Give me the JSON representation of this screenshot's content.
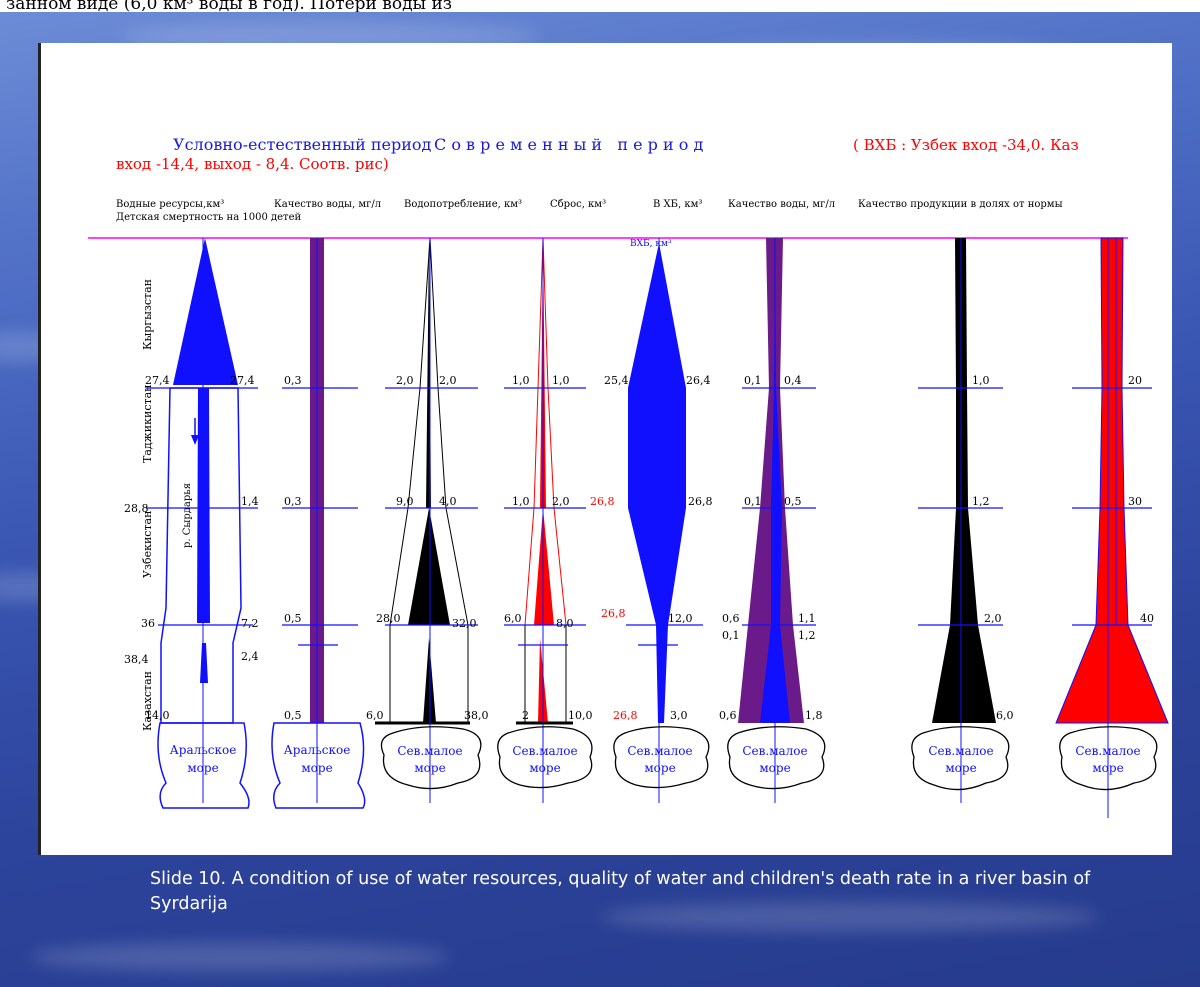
{
  "page": {
    "top_text": "занном виде (6,0 км³ воды в год). Потери воды из"
  },
  "header": {
    "title_1": "Условно-естественный период",
    "title_2": "С о в р е м е н н ы й   п е р и о д",
    "title_3": "( ВХБ : Узбек вход -34,0. Каз",
    "line2": "вход -14,4, выход - 8,4. Соотв. рис)"
  },
  "columns": {
    "col1": "Водные ресурсы,км³",
    "col1b": "Детская смертность на 1000 детей",
    "col2": "Качество воды, мг/л",
    "col3": "Водопотребление, км³",
    "col4": "Сброс, км³",
    "col5": "В ХБ, км³",
    "col6": "Качество воды, мг/л",
    "col7": "Качество продукции в долях от нормы"
  },
  "regions": [
    "Кыргызстан",
    "Таджикистан",
    "Узбекистан",
    "Казахстан"
  ],
  "river_label": "р. Сырдарья",
  "vhb_label": "ВХБ, км³",
  "values": {
    "c1": {
      "l": [
        "27,4",
        "28,8",
        "36",
        "38,4",
        "14,0"
      ],
      "r": [
        "27,4",
        "1,4",
        "7,2",
        "2,4"
      ]
    },
    "c2": [
      "0,3",
      "0,3",
      "0,5",
      "0,5"
    ],
    "c3": {
      "l": [
        "2,0",
        "9,0",
        "28,0",
        "6,0"
      ],
      "r": [
        "2,0",
        "4,0",
        "32,0",
        "38,0"
      ]
    },
    "c4": {
      "l": [
        "1,0",
        "1,0",
        "6,0",
        "2"
      ],
      "r": [
        "1,0",
        "2,0",
        "8,0",
        "10,0"
      ]
    },
    "c5": {
      "l": [
        "25,4",
        "26,8",
        "26,8",
        "26,8"
      ],
      "r": [
        "26,4",
        "26,8",
        "12,0",
        "3,0"
      ]
    },
    "c6": {
      "l": [
        "0,1",
        "0,1",
        "0,6",
        "0,1",
        "0,6"
      ],
      "r": [
        "0,4",
        "0,5",
        "1,1",
        "1,2",
        "1,8"
      ]
    },
    "c7": [
      "1,0",
      "1,2",
      "2,0",
      "6,0"
    ],
    "c8": [
      "20",
      "30",
      "40"
    ]
  },
  "sea": {
    "aral": [
      "Аральское",
      "море"
    ],
    "north": [
      "Сев.малое",
      "море"
    ]
  },
  "caption": "Slide 10. A condition of use of water resources, quality of water and children's death rate in a river basin of Syrdarija",
  "colors": {
    "blue": "#1010ff",
    "red": "#ff0000",
    "purple": "#6b1a8a",
    "black": "#000000",
    "magenta": "#ff00ff",
    "title_blue": "#1a1ad8"
  }
}
